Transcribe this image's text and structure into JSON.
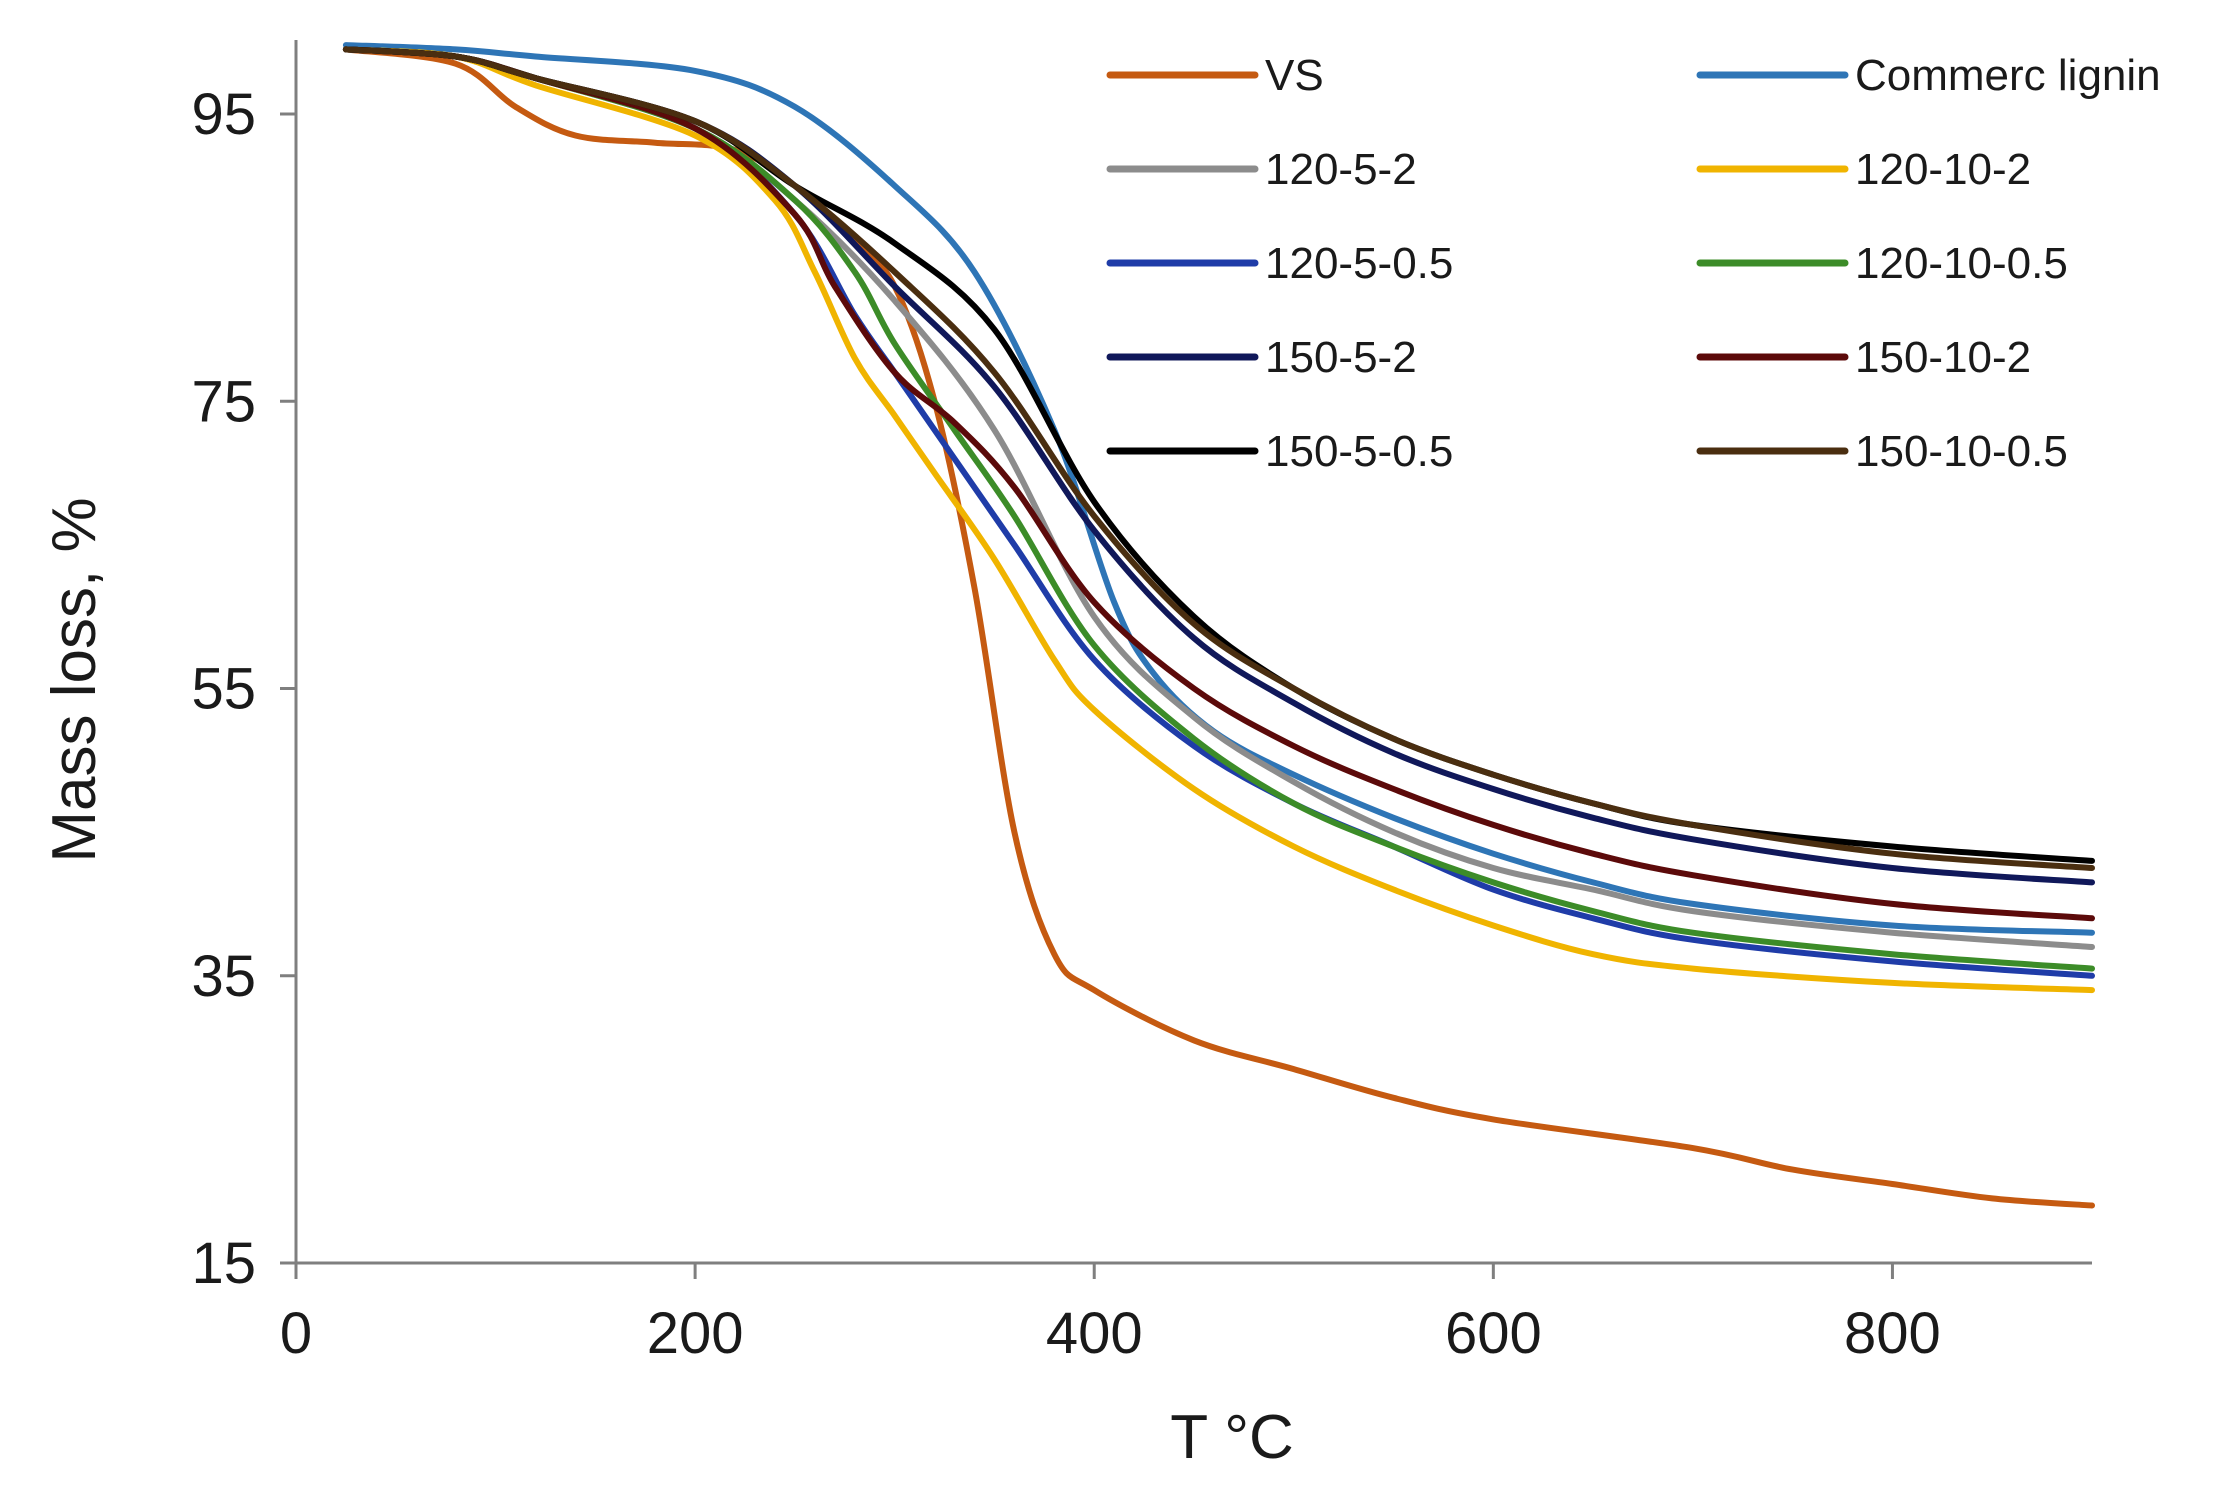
{
  "chart_data": {
    "type": "line",
    "title": "",
    "xlabel": "T °C",
    "ylabel": "Mass loss, %",
    "xlim": [
      0,
      900
    ],
    "ylim": [
      15,
      100
    ],
    "x_ticks": [
      0,
      200,
      400,
      600,
      800
    ],
    "y_ticks": [
      15,
      35,
      55,
      75,
      95
    ],
    "x_tick_labels": [
      "0",
      "200",
      "400",
      "600",
      "800"
    ],
    "y_tick_labels": [
      "15",
      "35",
      "55",
      "75",
      "95"
    ],
    "grid": false,
    "legend_position": "top-right",
    "series": [
      {
        "name": "VS",
        "color": "#C55A11",
        "points": [
          [
            25,
            99.5
          ],
          [
            80,
            98.5
          ],
          [
            110,
            95.5
          ],
          [
            140,
            93.5
          ],
          [
            180,
            93
          ],
          [
            220,
            92.5
          ],
          [
            250,
            90
          ],
          [
            280,
            86
          ],
          [
            300,
            83
          ],
          [
            320,
            75
          ],
          [
            340,
            62
          ],
          [
            360,
            45
          ],
          [
            380,
            36.5
          ],
          [
            400,
            34
          ],
          [
            450,
            30.5
          ],
          [
            500,
            28.5
          ],
          [
            550,
            26.5
          ],
          [
            600,
            25
          ],
          [
            700,
            23
          ],
          [
            750,
            21.5
          ],
          [
            800,
            20.5
          ],
          [
            850,
            19.5
          ],
          [
            900,
            19
          ]
        ]
      },
      {
        "name": "Commerc lignin",
        "color": "#2E75B6",
        "points": [
          [
            25,
            99.8
          ],
          [
            80,
            99.5
          ],
          [
            120,
            99
          ],
          [
            200,
            98
          ],
          [
            250,
            95.5
          ],
          [
            300,
            90
          ],
          [
            340,
            84
          ],
          [
            380,
            73
          ],
          [
            410,
            61
          ],
          [
            430,
            56
          ],
          [
            460,
            52
          ],
          [
            500,
            49
          ],
          [
            550,
            46
          ],
          [
            600,
            43.5
          ],
          [
            650,
            41.5
          ],
          [
            700,
            40
          ],
          [
            800,
            38.5
          ],
          [
            900,
            38
          ]
        ]
      },
      {
        "name": "120-5-2",
        "color": "#8C8C8C",
        "points": [
          [
            25,
            99.5
          ],
          [
            80,
            99
          ],
          [
            120,
            97.5
          ],
          [
            200,
            94
          ],
          [
            250,
            89
          ],
          [
            300,
            82
          ],
          [
            350,
            73
          ],
          [
            400,
            60
          ],
          [
            450,
            53
          ],
          [
            500,
            48.5
          ],
          [
            550,
            45
          ],
          [
            600,
            42.5
          ],
          [
            650,
            41
          ],
          [
            700,
            39.5
          ],
          [
            800,
            38
          ],
          [
            900,
            37
          ]
        ]
      },
      {
        "name": "120-10-2",
        "color": "#F0B400",
        "points": [
          [
            25,
            99.5
          ],
          [
            80,
            99
          ],
          [
            120,
            97
          ],
          [
            200,
            93.5
          ],
          [
            240,
            89
          ],
          [
            260,
            84
          ],
          [
            280,
            78
          ],
          [
            300,
            74
          ],
          [
            320,
            70
          ],
          [
            350,
            64
          ],
          [
            380,
            57
          ],
          [
            400,
            53.5
          ],
          [
            450,
            48
          ],
          [
            500,
            44
          ],
          [
            550,
            41
          ],
          [
            600,
            38.5
          ],
          [
            650,
            36.5
          ],
          [
            700,
            35.5
          ],
          [
            800,
            34.5
          ],
          [
            900,
            34
          ]
        ]
      },
      {
        "name": "120-5-0.5",
        "color": "#1F3CA8",
        "points": [
          [
            25,
            99.5
          ],
          [
            80,
            99
          ],
          [
            120,
            97.5
          ],
          [
            200,
            94
          ],
          [
            250,
            88
          ],
          [
            280,
            81
          ],
          [
            300,
            77
          ],
          [
            330,
            71
          ],
          [
            360,
            65
          ],
          [
            400,
            57
          ],
          [
            450,
            51
          ],
          [
            500,
            47
          ],
          [
            550,
            44
          ],
          [
            600,
            41
          ],
          [
            650,
            39
          ],
          [
            700,
            37.5
          ],
          [
            800,
            36
          ],
          [
            900,
            35
          ]
        ]
      },
      {
        "name": "120-10-0.5",
        "color": "#3C8C28",
        "points": [
          [
            25,
            99.5
          ],
          [
            80,
            99
          ],
          [
            120,
            97.5
          ],
          [
            200,
            94
          ],
          [
            250,
            89
          ],
          [
            280,
            84
          ],
          [
            300,
            79
          ],
          [
            330,
            73
          ],
          [
            360,
            67
          ],
          [
            400,
            58
          ],
          [
            450,
            51.5
          ],
          [
            500,
            47
          ],
          [
            550,
            44
          ],
          [
            600,
            41.5
          ],
          [
            650,
            39.5
          ],
          [
            700,
            38
          ],
          [
            800,
            36.5
          ],
          [
            900,
            35.5
          ]
        ]
      },
      {
        "name": "150-5-2",
        "color": "#10185A",
        "points": [
          [
            25,
            99.5
          ],
          [
            80,
            99
          ],
          [
            120,
            97.5
          ],
          [
            200,
            94.5
          ],
          [
            250,
            90
          ],
          [
            300,
            83
          ],
          [
            350,
            76
          ],
          [
            400,
            66
          ],
          [
            450,
            58.5
          ],
          [
            500,
            54
          ],
          [
            550,
            50.5
          ],
          [
            600,
            48
          ],
          [
            650,
            46
          ],
          [
            700,
            44.5
          ],
          [
            800,
            42.5
          ],
          [
            900,
            41.5
          ]
        ]
      },
      {
        "name": "150-10-2",
        "color": "#5C0A0A",
        "points": [
          [
            25,
            99.5
          ],
          [
            80,
            99
          ],
          [
            120,
            97.5
          ],
          [
            200,
            94
          ],
          [
            250,
            88
          ],
          [
            270,
            83
          ],
          [
            300,
            77
          ],
          [
            330,
            73.5
          ],
          [
            360,
            69
          ],
          [
            400,
            61
          ],
          [
            450,
            55
          ],
          [
            500,
            51
          ],
          [
            550,
            48
          ],
          [
            600,
            45.5
          ],
          [
            650,
            43.5
          ],
          [
            700,
            42
          ],
          [
            800,
            40
          ],
          [
            900,
            39
          ]
        ]
      },
      {
        "name": "150-5-0.5",
        "color": "#000000",
        "points": [
          [
            25,
            99.5
          ],
          [
            80,
            99
          ],
          [
            120,
            97.5
          ],
          [
            200,
            94.5
          ],
          [
            250,
            90
          ],
          [
            300,
            86
          ],
          [
            350,
            80
          ],
          [
            400,
            68
          ],
          [
            450,
            60
          ],
          [
            500,
            55
          ],
          [
            550,
            51.5
          ],
          [
            600,
            49
          ],
          [
            650,
            47
          ],
          [
            700,
            45.5
          ],
          [
            800,
            44
          ],
          [
            900,
            43
          ]
        ]
      },
      {
        "name": "150-10-0.5",
        "color": "#4A2E10",
        "points": [
          [
            25,
            99.5
          ],
          [
            80,
            99
          ],
          [
            120,
            97.5
          ],
          [
            200,
            94.5
          ],
          [
            250,
            90
          ],
          [
            300,
            84
          ],
          [
            350,
            77
          ],
          [
            400,
            67
          ],
          [
            450,
            59.5
          ],
          [
            500,
            55
          ],
          [
            550,
            51.5
          ],
          [
            600,
            49
          ],
          [
            650,
            47
          ],
          [
            700,
            45.5
          ],
          [
            800,
            43.5
          ],
          [
            900,
            42.5
          ]
        ]
      }
    ]
  }
}
